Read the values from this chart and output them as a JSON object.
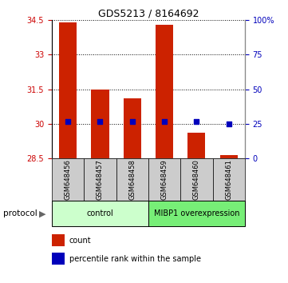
{
  "title": "GDS5213 / 8164692",
  "samples": [
    "GSM648456",
    "GSM648457",
    "GSM648458",
    "GSM648459",
    "GSM648460",
    "GSM648461"
  ],
  "bar_bottoms": [
    28.5,
    28.5,
    28.5,
    28.5,
    28.5,
    28.5
  ],
  "bar_tops": [
    34.4,
    31.5,
    31.1,
    34.3,
    29.6,
    28.65
  ],
  "percentile_ranks_left": [
    30.1,
    30.1,
    30.1,
    30.1,
    30.1,
    30.0
  ],
  "ylim_left": [
    28.5,
    34.5
  ],
  "yticks_left": [
    28.5,
    30.0,
    31.5,
    33.0,
    34.5
  ],
  "yticklabels_left": [
    "28.5",
    "30",
    "31.5",
    "33",
    "34.5"
  ],
  "yticks_right": [
    0,
    25,
    50,
    75,
    100
  ],
  "yticklabels_right": [
    "0",
    "25",
    "50",
    "75",
    "100%"
  ],
  "grid_yticks": [
    30.0,
    31.5,
    33.0,
    34.5
  ],
  "bar_color": "#cc2200",
  "dot_color": "#0000bb",
  "dot_size": 14,
  "bar_width": 0.55,
  "protocol_groups": [
    {
      "label": "control",
      "start": 0,
      "end": 3,
      "color": "#ccffcc"
    },
    {
      "label": "MIBP1 overexpression",
      "start": 3,
      "end": 6,
      "color": "#77ee77"
    }
  ],
  "legend_items": [
    {
      "label": "count",
      "color": "#cc2200"
    },
    {
      "label": "percentile rank within the sample",
      "color": "#0000bb"
    }
  ],
  "protocol_label": "protocol",
  "background_color": "#ffffff",
  "sample_bg_color": "#cccccc",
  "left_tick_color": "#cc0000",
  "right_tick_color": "#0000bb",
  "title_fontsize": 9,
  "tick_labelsize": 7,
  "sample_fontsize": 6,
  "proto_fontsize": 7,
  "legend_fontsize": 7
}
